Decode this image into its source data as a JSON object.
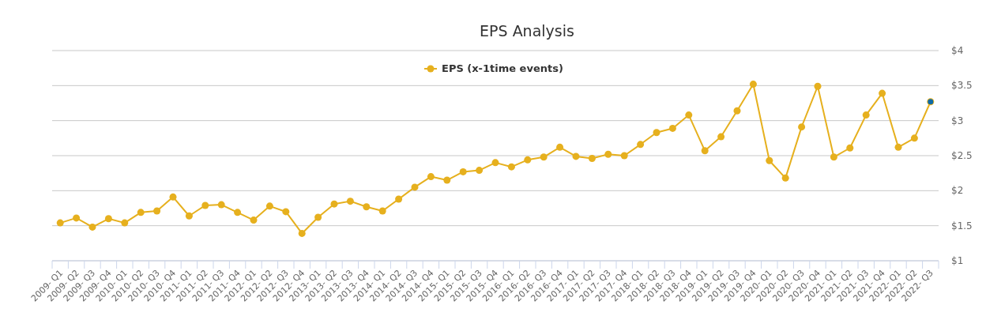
{
  "chart_data": {
    "type": "line",
    "title": "EPS Analysis",
    "categories": [
      "2009- Q1",
      "2009- Q2",
      "2009- Q3",
      "2009- Q4",
      "2010- Q1",
      "2010- Q2",
      "2010- Q3",
      "2010- Q4",
      "2011- Q1",
      "2011- Q2",
      "2011- Q3",
      "2011- Q4",
      "2012- Q1",
      "2012- Q2",
      "2012- Q3",
      "2012- Q4",
      "2013- Q1",
      "2013- Q2",
      "2013- Q3",
      "2013- Q4",
      "2014- Q1",
      "2014- Q2",
      "2014- Q3",
      "2014- Q4",
      "2015- Q1",
      "2015- Q2",
      "2015- Q3",
      "2015- Q4",
      "2016- Q1",
      "2016- Q2",
      "2016- Q3",
      "2016- Q4",
      "2017- Q1",
      "2017- Q2",
      "2017- Q3",
      "2017- Q4",
      "2018- Q1",
      "2018- Q2",
      "2018- Q3",
      "2018- Q4",
      "2019- Q1",
      "2019- Q2",
      "2019- Q3",
      "2019- Q4",
      "2020- Q1",
      "2020- Q2",
      "2020- Q3",
      "2020- Q4",
      "2021- Q1",
      "2021- Q2",
      "2021- Q3",
      "2021- Q4",
      "2022- Q1",
      "2022- Q2",
      "2022- Q3"
    ],
    "series": [
      {
        "name": "EPS (x-1time events)",
        "color": "#e6b01e",
        "values": [
          1.54,
          1.61,
          1.48,
          1.6,
          1.54,
          1.69,
          1.71,
          1.91,
          1.64,
          1.79,
          1.8,
          1.69,
          1.58,
          1.78,
          1.7,
          1.39,
          1.62,
          1.81,
          1.85,
          1.77,
          1.71,
          1.88,
          2.05,
          2.2,
          2.15,
          2.27,
          2.29,
          2.4,
          2.34,
          2.44,
          2.48,
          2.62,
          2.49,
          2.46,
          2.52,
          2.5,
          2.66,
          2.83,
          2.89,
          3.08,
          2.57,
          2.77,
          3.14,
          3.52,
          2.43,
          2.18,
          2.91,
          3.49,
          2.48,
          2.61,
          3.08,
          3.39,
          2.62,
          2.75,
          3.27
        ]
      },
      {
        "type": "scatter",
        "color": "#0f6aa6",
        "x": [
          "2022- Q3"
        ],
        "values": [
          3.27
        ]
      }
    ],
    "ylim": [
      1,
      4
    ],
    "yticks": [
      {
        "value": 1,
        "label": "$1"
      },
      {
        "value": 1.5,
        "label": "$1.5"
      },
      {
        "value": 2,
        "label": "$2"
      },
      {
        "value": 2.5,
        "label": "$2.5"
      },
      {
        "value": 3,
        "label": "$3"
      },
      {
        "value": 3.5,
        "label": "$3.5"
      },
      {
        "value": 4,
        "label": "$4"
      }
    ],
    "grid": "y",
    "legend": "top",
    "marker": "circle"
  }
}
